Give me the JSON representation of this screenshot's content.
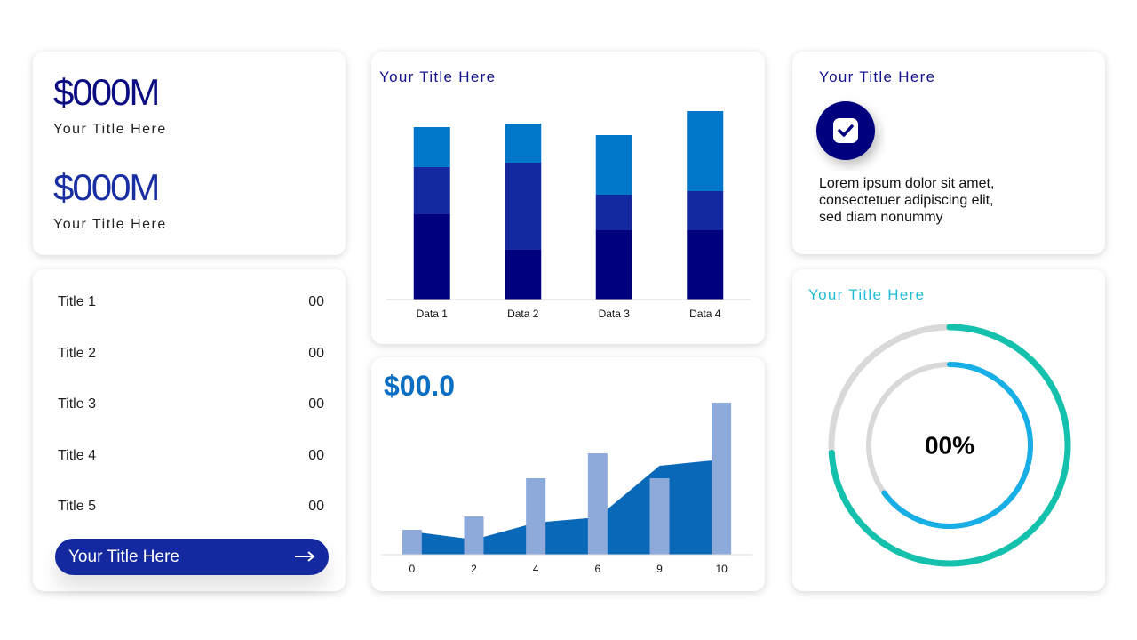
{
  "kpis": [
    {
      "value": "$000M",
      "label": "Your Title Here"
    },
    {
      "value": "$000M",
      "label": "Your Title Here"
    }
  ],
  "list": {
    "rows": [
      {
        "label": "Title 1",
        "value": "00"
      },
      {
        "label": "Title 2",
        "value": "00"
      },
      {
        "label": "Title 3",
        "value": "00"
      },
      {
        "label": "Title 4",
        "value": "00"
      },
      {
        "label": "Title 5",
        "value": "00"
      }
    ],
    "button": "Your Title Here"
  },
  "info": {
    "title": "Your Title Here",
    "lines": [
      "Lorem ipsum dolor sit amet,",
      "consectetuer adipiscing elit,",
      "sed diam nonummy"
    ]
  },
  "chart_data": [
    {
      "type": "bar",
      "stacked": true,
      "title": "Your Title Here",
      "categories": [
        "Data 1",
        "Data 2",
        "Data 3",
        "Data 4"
      ],
      "series": [
        {
          "color": "#00007f",
          "values": [
            96,
            56,
            78,
            78
          ]
        },
        {
          "color": "#1428a0",
          "values": [
            53,
            98,
            40,
            44
          ]
        },
        {
          "color": "#0077c8",
          "values": [
            45,
            44,
            67,
            90
          ]
        }
      ],
      "ylim": [
        0,
        220
      ]
    },
    {
      "type": "bar",
      "title": "$00.0",
      "categories": [
        "0",
        "2",
        "4",
        "6",
        "9",
        "10"
      ],
      "series": [
        {
          "type": "area",
          "color": "#0a68b8",
          "values": [
            26,
            17,
            36,
            42,
            100,
            107
          ]
        },
        {
          "type": "bar",
          "color": "#8eaadb",
          "values": [
            28,
            43,
            86,
            114,
            86,
            171
          ]
        }
      ],
      "ylim": [
        0,
        180
      ]
    },
    {
      "type": "donut",
      "title": "Your Title Here",
      "center_label": "00%",
      "series": [
        {
          "color": "#14c1ad",
          "values": [
            74
          ]
        },
        {
          "color": "#17afe6",
          "values": [
            65
          ]
        }
      ],
      "ylim": [
        0,
        100
      ]
    }
  ]
}
